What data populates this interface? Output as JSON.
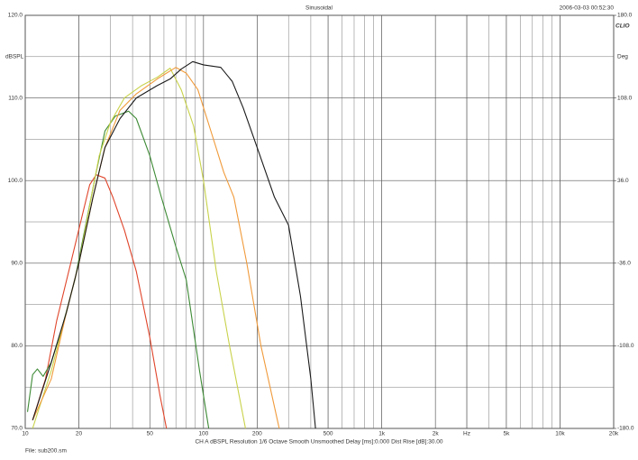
{
  "chart_data": {
    "type": "line",
    "title": "Sinusoidal",
    "timestamp": "2006-03-03 00:52:30",
    "logo": "CLIO",
    "ylabel": "dBSPL",
    "y2label": "Deg",
    "footer": "CH A   dBSPL   Resolution 1/6 Octave   Smooth Unsmoothed   Delay [ms]:0.000   Dist Rise [dB]:30.00",
    "file": "File: sub200.sm",
    "xscale": "log",
    "grid": true,
    "xlim": [
      10,
      20000
    ],
    "xticks": [
      10,
      20,
      50,
      100,
      200,
      500,
      {
        "value": 1000,
        "label": "1k"
      },
      {
        "value": 2000,
        "label": "2k"
      },
      {
        "value": 3000,
        "label": "Hz"
      },
      {
        "value": 5000,
        "label": "5k"
      },
      {
        "value": 10000,
        "label": "10k"
      },
      {
        "value": 20000,
        "label": "20k"
      }
    ],
    "ylim": [
      70,
      120
    ],
    "yticks": [
      {
        "value": 70,
        "label": "70.0"
      },
      {
        "value": 80,
        "label": "80.0"
      },
      {
        "value": 90,
        "label": "90.0"
      },
      {
        "value": 100,
        "label": "100.0"
      },
      {
        "value": 110,
        "label": "110.0"
      },
      {
        "value": 120,
        "label": "120.0"
      }
    ],
    "y2lim": [
      -180,
      180
    ],
    "y2ticks": [
      {
        "value": -180,
        "label": "-180.0"
      },
      {
        "value": -108,
        "label": "-108.0"
      },
      {
        "value": -36,
        "label": "-36.0"
      },
      {
        "value": 36,
        "label": "36.0"
      },
      {
        "value": 108,
        "label": "108.0"
      },
      {
        "value": 180,
        "label": "180.0"
      }
    ],
    "series": [
      {
        "color": "#e0452b",
        "x": [
          11,
          13,
          15,
          18,
          21,
          23,
          25,
          28,
          31,
          36,
          42,
          50,
          57,
          62
        ],
        "values": [
          71,
          76,
          83,
          90,
          96,
          99.5,
          100.7,
          100.3,
          98,
          94,
          89,
          81,
          74,
          70
        ]
      },
      {
        "color": "#3d8a35",
        "x": [
          10.3,
          11,
          11.7,
          12.6,
          14,
          16,
          19,
          22,
          25,
          28,
          32,
          38,
          42,
          50,
          58,
          70,
          80,
          95,
          107
        ],
        "values": [
          72,
          76.5,
          77.2,
          76.3,
          78,
          82,
          88,
          95,
          101,
          106,
          107.8,
          108.4,
          107.5,
          103,
          98,
          92,
          88,
          77,
          70
        ]
      },
      {
        "color": "#c8d24a",
        "x": [
          11,
          14,
          17,
          20,
          23,
          26,
          30,
          36,
          45,
          55,
          65,
          75,
          88,
          100,
          118,
          140,
          172
        ],
        "values": [
          70,
          77,
          84,
          90,
          97,
          103,
          107,
          110,
          111.5,
          112.5,
          113.6,
          111,
          106.6,
          100,
          89,
          80,
          70
        ]
      },
      {
        "color": "#f09a3a",
        "x": [
          11,
          14,
          17,
          20,
          24,
          28,
          34,
          42,
          55,
          70,
          80,
          93,
          110,
          130,
          148,
          175,
          210,
          266
        ],
        "values": [
          71,
          76,
          84,
          90,
          98,
          104,
          108.5,
          110.5,
          112.3,
          113.7,
          113,
          111,
          106,
          101,
          98,
          90,
          80,
          70
        ]
      },
      {
        "color": "#1a1a1a",
        "x": [
          11,
          14,
          17,
          20,
          24,
          28,
          34,
          42,
          55,
          65,
          75,
          87,
          100,
          125,
          145,
          167,
          200,
          250,
          300,
          350,
          400,
          425
        ],
        "values": [
          71,
          78,
          84,
          90,
          98,
          104,
          107.5,
          110,
          111.5,
          112.3,
          113.5,
          114.4,
          114,
          113.7,
          112,
          108.8,
          104,
          98,
          94.6,
          86,
          76,
          70
        ]
      }
    ]
  }
}
